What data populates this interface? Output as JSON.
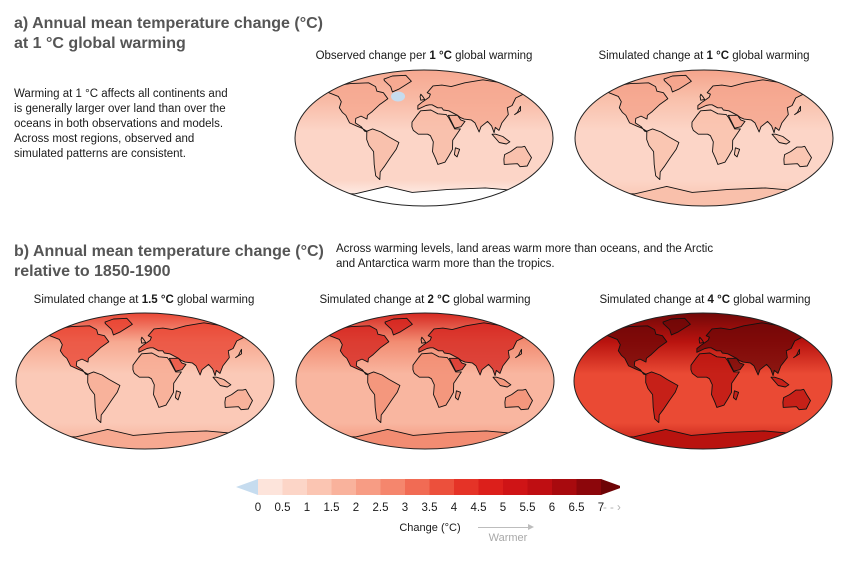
{
  "section_a": {
    "title_line1": "a) Annual mean temperature change (°C)",
    "title_line2": "at 1 °C global warming",
    "description": [
      "Warming at 1 °C affects all continents and",
      "is generally larger over land than over the",
      "oceans in both observations and models.",
      "Across most regions, observed and",
      "simulated patterns are consistent."
    ]
  },
  "section_b": {
    "title_line1": "b) Annual mean temperature change (°C)",
    "title_line2": "relative to 1850-1900",
    "description": [
      "Across warming levels, land areas warm more than oceans, and the Arctic",
      "and Antarctica warm more than the tropics."
    ]
  },
  "maps": [
    {
      "pre": "Observed change per ",
      "level": "1 °C",
      "post": " global warming",
      "base": "#fcd5c7",
      "polar": "#f6a78f",
      "land": "#f8b9a4"
    },
    {
      "pre": "Simulated change at ",
      "level": "1 °C",
      "post": " global warming",
      "base": "#fcd5c7",
      "polar": "#f4a189",
      "land": "#f9c0ab"
    },
    {
      "pre": "Simulated change at ",
      "level": "1.5 °C",
      "post": " global warming",
      "base": "#fbc9b7",
      "polar": "#e8402f",
      "land": "#f7a991"
    },
    {
      "pre": "Simulated change at ",
      "level": "2 °C",
      "post": " global warming",
      "base": "#f9b6a0",
      "polar": "#d4221c",
      "land": "#f28c72"
    },
    {
      "pre": "Simulated change at ",
      "level": "4 °C",
      "post": " global warming",
      "base": "#ea4a34",
      "polar": "#6d0707",
      "land": "#b9130f"
    }
  ],
  "colorbar": {
    "labels": [
      "0",
      "0.5",
      "1",
      "1.5",
      "2",
      "2.5",
      "3",
      "3.5",
      "4",
      "4.5",
      "5",
      "5.5",
      "6",
      "6.5",
      "7"
    ],
    "more": "- - ›",
    "title": "Change (°C)",
    "warmer": "Warmer",
    "colors": [
      "#fde4db",
      "#fcd5c7",
      "#fbc5b2",
      "#f9b29c",
      "#f79c84",
      "#f5866d",
      "#f16b54",
      "#ec503c",
      "#e53327",
      "#dc1f1b",
      "#cf1416",
      "#bf0e12",
      "#a80a0e",
      "#8c060b"
    ],
    "cold_color": "#c6dcef",
    "hot_color": "#6e0406"
  }
}
